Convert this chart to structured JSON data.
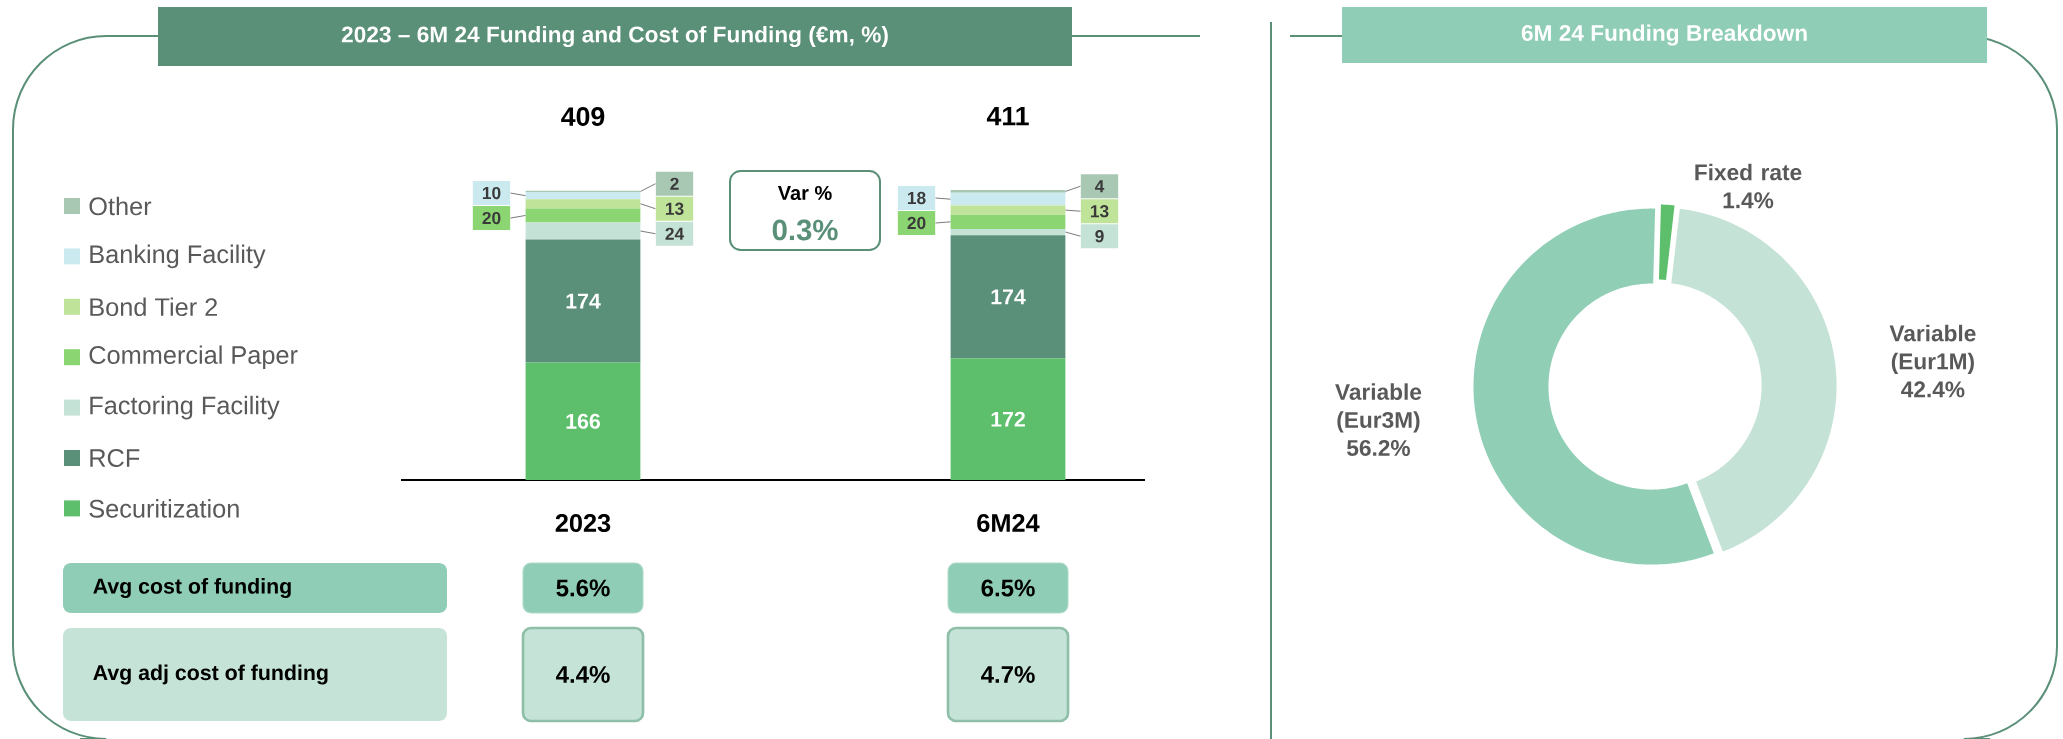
{
  "chart_data": [
    {
      "type": "bar",
      "title": "2023 – 6M 24 Funding and Cost of Funding (€m, %)",
      "categories": [
        "2023",
        "6M24"
      ],
      "stacked": true,
      "data_labels": true,
      "legend": "left",
      "totals": [
        "409",
        "411"
      ],
      "series": [
        {
          "name": "Securitization",
          "color": "#5dbf6b",
          "values": [
            166,
            172
          ]
        },
        {
          "name": "RCF",
          "color": "#5a8f7a",
          "values": [
            174,
            174
          ]
        },
        {
          "name": "Factoring Facility",
          "color": "#c5e2d6",
          "values": [
            24,
            9
          ]
        },
        {
          "name": "Commercial Paper",
          "color": "#8bd672",
          "values": [
            20,
            20
          ]
        },
        {
          "name": "Bond Tier 2",
          "color": "#c0e39a",
          "values": [
            13,
            13
          ]
        },
        {
          "name": "Banking Facility",
          "color": "#cbeaf0",
          "values": [
            10,
            18
          ]
        },
        {
          "name": "Other",
          "color": "#a9c8b4",
          "values": [
            2,
            4
          ]
        }
      ],
      "annotations": [
        "Var %",
        "0.3%",
        "Avg cost of funding",
        "5.6%",
        "6.5%",
        "Avg adj cost of funding",
        "4.4%",
        "4.7%"
      ]
    },
    {
      "type": "donut",
      "title": "6M 24 Funding Breakdown",
      "categories": [
        "Fixed rate",
        "Variable (Eur1M)",
        "Variable (Eur3M)"
      ],
      "values": [
        1.4,
        42.4,
        56.2
      ],
      "colors": [
        "#5dbf6b",
        "#c5e2d6",
        "#90cfb6"
      ],
      "value_labels": [
        "1.4%",
        "42.4%",
        "56.2%"
      ]
    }
  ]
}
